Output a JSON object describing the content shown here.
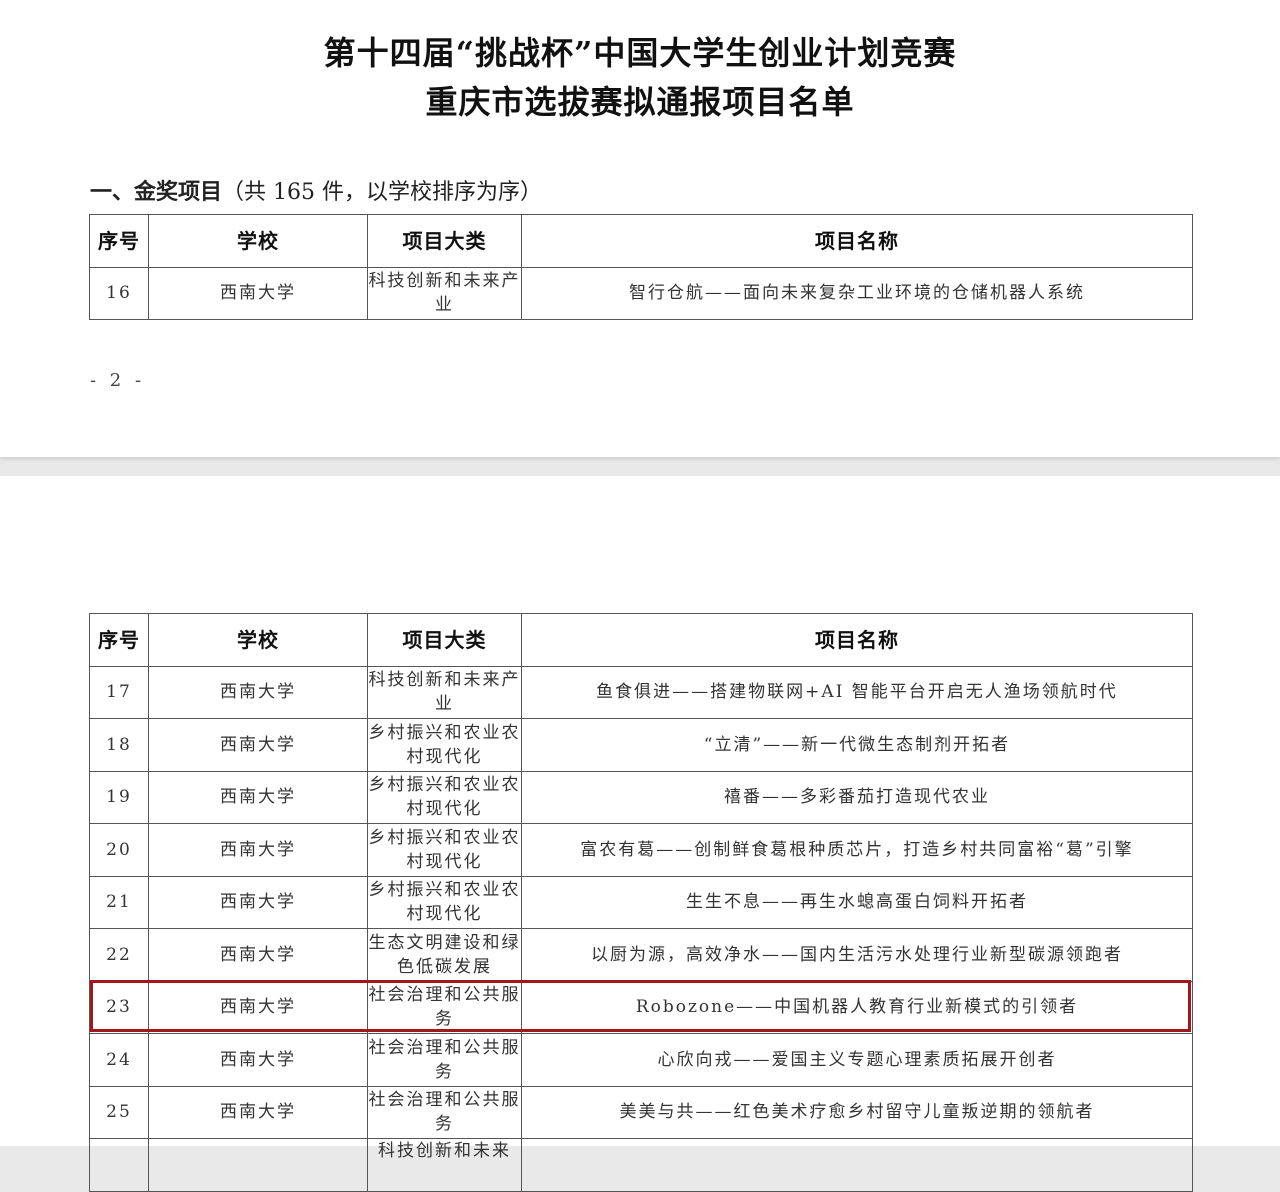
{
  "title_line1": "第十四届“挑战杯”中国大学生创业计划竞赛",
  "title_line2": "重庆市选拔赛拟通报项目名单",
  "section_heading": "一、金奖项目",
  "section_note": "（共 165 件，以学校排序为序）",
  "page_number": "- 2 -",
  "headers": [
    "序号",
    "学校",
    "项目大类",
    "项目名称"
  ],
  "page1_rows": [
    {
      "no": "16",
      "school": "西南大学",
      "category": "科技创新和未来产业",
      "name": "智行仓航——面向未来复杂工业环境的仓储机器人系统"
    }
  ],
  "page2_rows": [
    {
      "no": "17",
      "school": "西南大学",
      "category": "科技创新和未来产业",
      "name": "鱼食俱进——搭建物联网+AI 智能平台开启无人渔场领航时代"
    },
    {
      "no": "18",
      "school": "西南大学",
      "category": "乡村振兴和农业农村现代化",
      "name": "“立清”——新一代微生态制剂开拓者"
    },
    {
      "no": "19",
      "school": "西南大学",
      "category": "乡村振兴和农业农村现代化",
      "name": "禧番——多彩番茄打造现代农业"
    },
    {
      "no": "20",
      "school": "西南大学",
      "category": "乡村振兴和农业农村现代化",
      "name": "富农有葛——创制鲜食葛根种质芯片，打造乡村共同富裕“葛”引擎"
    },
    {
      "no": "21",
      "school": "西南大学",
      "category": "乡村振兴和农业农村现代化",
      "name": "生生不息——再生水螅高蛋白饲料开拓者"
    },
    {
      "no": "22",
      "school": "西南大学",
      "category": "生态文明建设和绿色低碳发展",
      "name": "以厨为源，高效净水——国内生活污水处理行业新型碳源领跑者"
    },
    {
      "no": "23",
      "school": "西南大学",
      "category": "社会治理和公共服务",
      "name": "Robozone——中国机器人教育行业新模式的引领者",
      "highlighted": true
    },
    {
      "no": "24",
      "school": "西南大学",
      "category": "社会治理和公共服务",
      "name": "心欣向戎——爱国主义专题心理素质拓展开创者"
    },
    {
      "no": "25",
      "school": "西南大学",
      "category": "社会治理和公共服务",
      "name": "美美与共——红色美术疗愈乡村留守儿童叛逆期的领航者"
    },
    {
      "no": "",
      "school": "",
      "category": "科技创新和未来",
      "name": ""
    }
  ],
  "highlight_color": "#a3161a"
}
